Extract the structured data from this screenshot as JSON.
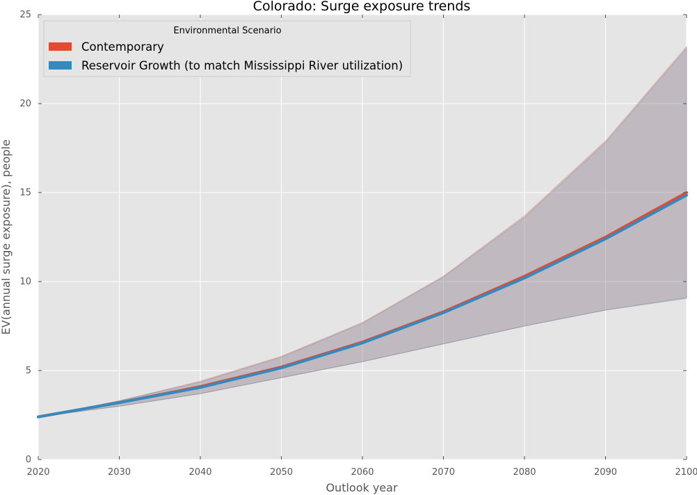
{
  "chart_data": {
    "type": "line",
    "title": "Colorado: Surge exposure trends",
    "xlabel": "Outlook year",
    "ylabel": "EV(annual surge exposure), people",
    "xlim": [
      2020,
      2100
    ],
    "ylim": [
      0,
      25
    ],
    "xticks": [
      2020,
      2030,
      2040,
      2050,
      2060,
      2070,
      2080,
      2090,
      2100
    ],
    "yticks": [
      0,
      5,
      10,
      15,
      20,
      25
    ],
    "grid": true,
    "legend": {
      "title": "Environmental Scenario",
      "placement": "top-left"
    },
    "x": [
      2020,
      2030,
      2040,
      2050,
      2060,
      2070,
      2080,
      2090,
      2100
    ],
    "series": [
      {
        "name": "Contemporary",
        "color": "#E24A33",
        "values": [
          2.4,
          3.2,
          4.1,
          5.2,
          6.6,
          8.3,
          10.3,
          12.5,
          15.0
        ],
        "band_lower": [
          2.4,
          3.0,
          3.7,
          4.6,
          5.5,
          6.5,
          7.5,
          8.4,
          9.1
        ],
        "band_upper": [
          2.4,
          3.3,
          4.4,
          5.8,
          7.7,
          10.3,
          13.7,
          17.9,
          23.2
        ]
      },
      {
        "name": "Reservoir Growth (to match Mississippi River utilization)",
        "color": "#348ABD",
        "values": [
          2.4,
          3.2,
          4.05,
          5.15,
          6.55,
          8.25,
          10.2,
          12.4,
          14.85
        ],
        "band_lower": [
          2.4,
          3.0,
          3.7,
          4.6,
          5.5,
          6.5,
          7.5,
          8.4,
          9.05
        ],
        "band_upper": [
          2.4,
          3.3,
          4.35,
          5.75,
          7.65,
          10.25,
          13.6,
          17.8,
          23.1
        ]
      }
    ]
  }
}
